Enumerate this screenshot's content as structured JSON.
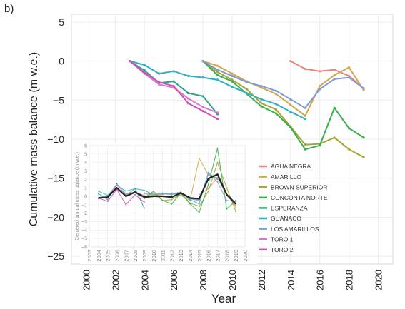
{
  "panel_label": "b)",
  "chart_data": [
    {
      "type": "line",
      "xlabel": "Year",
      "ylabel": "Cumulative mass balance (m w.e.)",
      "xlim": [
        1999,
        2021
      ],
      "ylim": [
        -26,
        6
      ],
      "xticks": [
        2000,
        2002,
        2004,
        2006,
        2008,
        2010,
        2012,
        2014,
        2016,
        2018,
        2020
      ],
      "yticks": [
        5,
        0,
        -5,
        -10,
        -15,
        -20,
        -25
      ],
      "ytick_labels": [
        "5",
        "0",
        "−5",
        "−10",
        "−15",
        "−20",
        "−25"
      ],
      "grid": true,
      "legend_position": "right",
      "series": [
        {
          "name": "AGUA NEGRA",
          "color": "#e8877a",
          "x": [
            2014,
            2015,
            2016,
            2017,
            2018,
            2019
          ],
          "y": [
            0,
            -1.0,
            -1.3,
            -1.1,
            -1.9,
            -3.5
          ]
        },
        {
          "name": "AMARILLO",
          "color": "#d4a64a",
          "x": [
            2008,
            2009,
            2010,
            2011,
            2012,
            2013,
            2014,
            2015,
            2016,
            2017,
            2018,
            2019
          ],
          "y": [
            0,
            -0.6,
            -1.6,
            -2.6,
            -3.4,
            -4.2,
            -5.6,
            -7.0,
            -3.2,
            -1.8,
            -0.8,
            -3.7
          ]
        },
        {
          "name": "BROWN SUPERIOR",
          "color": "#a6a630",
          "x": [
            2008,
            2009,
            2010,
            2011,
            2012,
            2013,
            2014,
            2015,
            2016,
            2017,
            2018,
            2019
          ],
          "y": [
            0,
            -1.4,
            -2.4,
            -3.6,
            -5.4,
            -6.2,
            -8.4,
            -10.7,
            -10.6,
            -9.8,
            -11.3,
            -12.3
          ]
        },
        {
          "name": "CONCONTA NORTE",
          "color": "#3aae4a",
          "x": [
            2008,
            2009,
            2010,
            2011,
            2012,
            2013,
            2014,
            2015,
            2016,
            2017,
            2018,
            2019
          ],
          "y": [
            0,
            -1.8,
            -2.6,
            -4.2,
            -5.8,
            -6.7,
            -8.5,
            -11.3,
            -10.8,
            -6.0,
            -8.6,
            -9.8
          ]
        },
        {
          "name": "ESPERANZA",
          "color": "#2fa38a",
          "x": [
            2003,
            2004,
            2005,
            2006,
            2007,
            2008,
            2009
          ],
          "y": [
            0,
            -1.2,
            -2.8,
            -2.6,
            -4.1,
            -4.5,
            -6.8
          ]
        },
        {
          "name": "GUANACO",
          "color": "#2bb0c6",
          "x": [
            2003,
            2004,
            2005,
            2006,
            2007,
            2008,
            2009,
            2010,
            2011,
            2012,
            2013,
            2014,
            2015
          ],
          "y": [
            0,
            -0.5,
            -1.6,
            -1.3,
            -1.9,
            -2.1,
            -2.4,
            -3.3,
            -4.1,
            -4.9,
            -5.5,
            -6.5,
            -7.4
          ]
        },
        {
          "name": "LOS AMARILLOS",
          "color": "#7e9ad8",
          "x": [
            2008,
            2009,
            2010,
            2011,
            2012,
            2013,
            2014,
            2015,
            2016,
            2017,
            2018,
            2019
          ],
          "y": [
            0,
            -1.1,
            -1.9,
            -2.7,
            -3.2,
            -3.8,
            -4.9,
            -6.0,
            -3.6,
            -2.3,
            -2.1,
            -3.5
          ]
        },
        {
          "name": "TORO 1",
          "color": "#d07ad0",
          "x": [
            2003,
            2004,
            2005,
            2006,
            2007,
            2008,
            2009
          ],
          "y": [
            0,
            -1.6,
            -3.0,
            -3.4,
            -4.8,
            -5.9,
            -6.6
          ]
        },
        {
          "name": "TORO 2",
          "color": "#d24fb8",
          "x": [
            2003,
            2004,
            2005,
            2006,
            2007,
            2008,
            2009
          ],
          "y": [
            0,
            -1.5,
            -2.7,
            -3.2,
            -5.4,
            -6.4,
            -7.4
          ]
        }
      ]
    },
    {
      "type": "line",
      "inset": true,
      "ylabel": "Centered annual mass balance (m w.e.)",
      "xlim": [
        2003,
        2020
      ],
      "ylim": [
        -6,
        6
      ],
      "xticks": [
        2003,
        2004,
        2005,
        2006,
        2007,
        2008,
        2009,
        2010,
        2011,
        2012,
        2013,
        2014,
        2015,
        2016,
        2017,
        2018,
        2019,
        2020
      ],
      "yticks": [
        6,
        5,
        4,
        3,
        2,
        1,
        0,
        -1,
        -2,
        -3,
        -4,
        -5,
        -6
      ],
      "ytick_labels": [
        "6",
        "5",
        "4",
        "3",
        "2",
        "1",
        "0",
        "−1",
        "−2",
        "−3",
        "−4",
        "−5",
        "−6"
      ],
      "grid": true,
      "series": [
        {
          "color": "#e8877a",
          "x": [
            2015,
            2016,
            2017,
            2018,
            2019
          ],
          "y": [
            0.2,
            0.9,
            2.2,
            0.1,
            -1.1
          ]
        },
        {
          "color": "#d4a64a",
          "x": [
            2009,
            2010,
            2011,
            2012,
            2013,
            2014,
            2015,
            2016,
            2017,
            2018,
            2019
          ],
          "y": [
            0.3,
            0.1,
            0.2,
            0.4,
            0.1,
            -0.5,
            4.5,
            2.5,
            2.2,
            0.3,
            -1.3
          ]
        },
        {
          "color": "#a6a630",
          "x": [
            2009,
            2010,
            2011,
            2012,
            2013,
            2014,
            2015,
            2016,
            2017,
            2018,
            2019
          ],
          "y": [
            -0.3,
            0.4,
            -0.5,
            -0.4,
            0.3,
            -0.8,
            -1.2,
            0.6,
            4.0,
            1.0,
            -1.8
          ]
        },
        {
          "color": "#3aae4a",
          "x": [
            2009,
            2010,
            2011,
            2012,
            2013,
            2014,
            2015,
            2016,
            2017,
            2018,
            2019
          ],
          "y": [
            -0.2,
            0.6,
            -0.5,
            -0.9,
            0.4,
            -0.9,
            -1.9,
            1.4,
            5.7,
            -1.5,
            -0.5
          ]
        },
        {
          "color": "#2fa38a",
          "x": [
            2004,
            2005,
            2006,
            2007,
            2008,
            2009
          ],
          "y": [
            0.3,
            -0.4,
            1.5,
            0.1,
            0.9,
            -1.4
          ]
        },
        {
          "color": "#2bb0c6",
          "x": [
            2004,
            2005,
            2006,
            2007,
            2008,
            2009,
            2010,
            2011,
            2012,
            2013,
            2014,
            2015,
            2016,
            2017
          ],
          "y": [
            0.6,
            0.1,
            1.3,
            0.6,
            0.9,
            0.7,
            0.2,
            0.3,
            0.2,
            0.4,
            -0.4,
            -0.9,
            2.8,
            2.0
          ]
        },
        {
          "color": "#7e9ad8",
          "x": [
            2009,
            2010,
            2011,
            2012,
            2013,
            2014,
            2015,
            2016,
            2017,
            2018,
            2019
          ],
          "y": [
            0.4,
            0.2,
            0.4,
            0.3,
            0.5,
            -0.3,
            -0.5,
            2.7,
            1.7,
            -0.5,
            -0.6
          ]
        },
        {
          "color": "#d07ad0",
          "x": [
            2004,
            2005,
            2006,
            2007,
            2008,
            2009
          ],
          "y": [
            -0.3,
            -0.1,
            1.3,
            0.3,
            0.5,
            0.1
          ]
        },
        {
          "color": "#d24fb8",
          "x": [
            2004,
            2005,
            2006,
            2007,
            2008,
            2009
          ],
          "y": [
            -0.2,
            -0.6,
            0.8,
            -1.0,
            0.2,
            -0.7
          ]
        },
        {
          "color": "#222222",
          "width": 2.2,
          "x": [
            2004,
            2005,
            2006,
            2007,
            2008,
            2009,
            2010,
            2011,
            2012,
            2013,
            2014,
            2015,
            2016,
            2017,
            2018,
            2019
          ],
          "y": [
            -0.2,
            -0.1,
            1.0,
            0.0,
            0.5,
            -0.1,
            0.0,
            0.0,
            -0.1,
            0.4,
            -0.2,
            -0.3,
            2.1,
            2.6,
            0.2,
            -0.9
          ]
        }
      ]
    }
  ]
}
